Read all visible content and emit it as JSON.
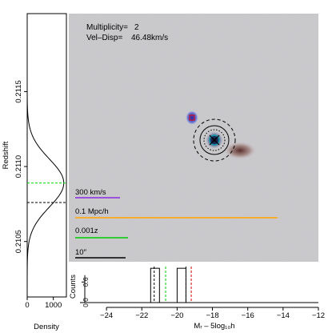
{
  "annotations": {
    "multiplicity_label": "Multiplicity=",
    "multiplicity_value": "2",
    "veldisp_label": "Vel–Disp=",
    "veldisp_value": "46.48km/s"
  },
  "scale_bars": [
    {
      "label": "300 km/s",
      "color": "#8a2be2"
    },
    {
      "label": "0.1 Mpc/h",
      "color": "#ffa500"
    },
    {
      "label": "0.001z",
      "color": "#00cc00"
    },
    {
      "label": "10″",
      "color": "#000000"
    }
  ],
  "chart_data": [
    {
      "type": "line",
      "name": "redshift-density",
      "xlabel": "Density",
      "ylabel": "Redshift",
      "x_ticks": [
        0,
        1000
      ],
      "y_ticks": [
        "0.2105",
        "0.2110",
        "0.2115"
      ],
      "ylim": [
        0.21013,
        0.21202
      ],
      "xlim": [
        0,
        1500
      ],
      "curve": {
        "mean": 0.21089,
        "sigma": 0.00016,
        "peak": 1400
      },
      "hlines": [
        {
          "y": 0.21089,
          "color": "#00dd00",
          "style": "dashed"
        },
        {
          "y": 0.21076,
          "color": "#000000",
          "style": "dashed"
        }
      ]
    },
    {
      "type": "bar",
      "name": "magnitude-histogram",
      "xlabel": "Mᵣ – 5log₁₀h",
      "ylabel": "Counts",
      "xlim": [
        -25.5,
        -12
      ],
      "ylim": [
        0,
        1.05
      ],
      "x_ticks": [
        -24,
        -22,
        -20,
        -18,
        -16,
        -14,
        -12
      ],
      "y_ticks": [
        "0.0",
        "0.6"
      ],
      "bins": [
        {
          "x0": -21.5,
          "x1": -21.0,
          "count": 1
        },
        {
          "x0": -20.0,
          "x1": -19.5,
          "count": 1
        }
      ],
      "vlines": [
        {
          "x": -21.3,
          "color": "#000000",
          "style": "dashed"
        },
        {
          "x": -20.65,
          "color": "#00cc00",
          "style": "dashed"
        },
        {
          "x": -19.5,
          "color": "#000000",
          "style": "dashed"
        },
        {
          "x": -19.2,
          "color": "#dd0000",
          "style": "dashed"
        }
      ]
    }
  ]
}
